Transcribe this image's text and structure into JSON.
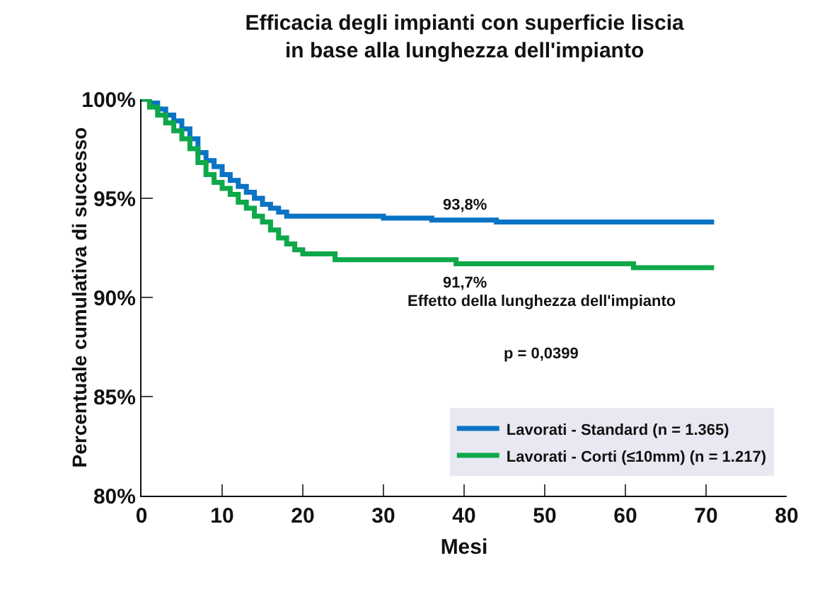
{
  "chart_data": {
    "type": "step",
    "title": "Efficacia degli impianti con superficie liscia in base alla lunghezza dell'impianto",
    "xlabel": "Mesi",
    "ylabel": "Percentuale cumulativa di successo",
    "xlim": [
      0,
      80
    ],
    "xticks": [
      0,
      10,
      20,
      30,
      40,
      50,
      60,
      70,
      80
    ],
    "ylim": [
      80,
      100
    ],
    "yticks": [
      {
        "value": 80,
        "label": "80%"
      },
      {
        "value": 85,
        "label": "85%"
      },
      {
        "value": 90,
        "label": "90%"
      },
      {
        "value": 95,
        "label": "95%"
      },
      {
        "value": 100,
        "label": "100%"
      }
    ],
    "grid": false,
    "legend": "bottom right",
    "marker": "none",
    "line_style": "solid",
    "series": [
      {
        "name": "Lavorati - Standard (n = 1.365)",
        "color": "#0a74c4",
        "x": [
          0,
          1,
          2,
          3,
          4,
          5,
          6,
          7,
          8,
          9,
          10,
          11,
          12,
          13,
          14,
          15,
          16,
          17,
          18,
          30,
          36,
          44,
          71
        ],
        "values": [
          100,
          99.8,
          99.5,
          99.2,
          98.9,
          98.5,
          98.0,
          97.3,
          96.9,
          96.6,
          96.2,
          95.9,
          95.6,
          95.3,
          95.0,
          94.7,
          94.5,
          94.3,
          94.1,
          94.0,
          93.9,
          93.8,
          93.8
        ]
      },
      {
        "name": "Lavorati - Corti (≤10mm) (n = 1.217)",
        "color": "#0ea84a",
        "x": [
          0,
          1,
          2,
          3,
          4,
          5,
          6,
          7,
          8,
          9,
          10,
          11,
          12,
          13,
          14,
          15,
          16,
          17,
          18,
          19,
          20,
          24,
          39,
          61,
          71
        ],
        "values": [
          100,
          99.6,
          99.2,
          98.8,
          98.4,
          98.0,
          97.5,
          96.8,
          96.2,
          95.8,
          95.5,
          95.2,
          94.8,
          94.5,
          94.1,
          93.8,
          93.4,
          93.0,
          92.7,
          92.4,
          92.2,
          91.9,
          91.7,
          91.5,
          91.5
        ]
      }
    ],
    "annotations": [
      {
        "text": "93,8%",
        "x": 40,
        "y": 93.8
      },
      {
        "text": "91,7%",
        "x": 40,
        "y": 91.7
      },
      "Effetto della lunghezza dell'impianto",
      "p = 0,0399"
    ]
  }
}
